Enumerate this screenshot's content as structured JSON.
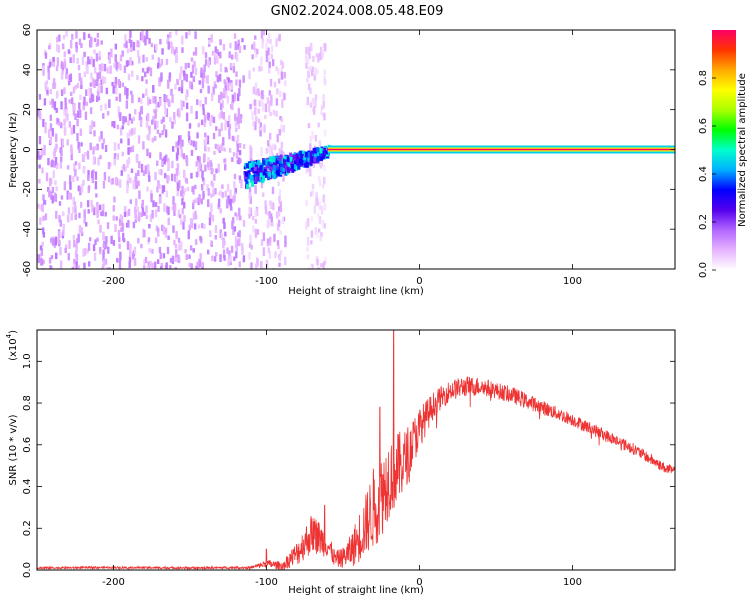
{
  "title": "GN02.2024.008.05.48.E09",
  "chart_data": [
    {
      "type": "heatmap",
      "panel": "spectrogram",
      "xlabel": "Height of straight line (km)",
      "ylabel": "Frequency (Hz)",
      "xlim": [
        -250,
        167
      ],
      "ylim": [
        -60,
        60
      ],
      "xticks": [
        -200,
        -100,
        0,
        100
      ],
      "yticks": [
        -60,
        -40,
        -20,
        0,
        20,
        40,
        60
      ],
      "colorbar": {
        "label": "Normalized spectral amplitude",
        "ticks": [
          "0.0",
          "0.2",
          "0.4",
          "0.6",
          "0.8"
        ],
        "range": [
          0,
          1
        ],
        "colors": [
          "#ffffff",
          "#e6b3ff",
          "#b266ff",
          "#5500ee",
          "#0000ff",
          "#00b0ff",
          "#00ffcc",
          "#00ff00",
          "#aaff00",
          "#ffff00",
          "#ffaa00",
          "#ff3300",
          "#ff0066"
        ]
      },
      "features": [
        {
          "description": "broadband noise",
          "x_range": [
            -250,
            -115
          ],
          "freq_range": [
            -60,
            60
          ],
          "amplitude_range": [
            0.05,
            0.15
          ]
        },
        {
          "description": "noise band",
          "x_range": [
            -112,
            -88
          ],
          "freq_range": [
            -60,
            60
          ],
          "amplitude_range": [
            0.03,
            0.12
          ]
        },
        {
          "description": "sparse noise",
          "x_range": [
            -75,
            -62
          ],
          "freq_range": [
            -60,
            55
          ],
          "amplitude_range": [
            0.02,
            0.08
          ]
        },
        {
          "description": "signal onset",
          "x_range": [
            -115,
            -60
          ],
          "freq_center": [
            -12,
            0
          ],
          "amplitude_range": [
            0.2,
            0.5
          ]
        },
        {
          "description": "narrow carrier line",
          "x_range": [
            -60,
            167
          ],
          "freq_center": 0,
          "amplitude_range": [
            0.7,
            1.0
          ]
        }
      ]
    },
    {
      "type": "line",
      "panel": "snr",
      "xlabel": "Height of straight line (km)",
      "ylabel": "SNR (10 * v/v)",
      "yunit_label": "(x10",
      "yunit_exp": "4",
      "xlim": [
        -250,
        167
      ],
      "ylim": [
        0,
        1.15
      ],
      "xticks": [
        -200,
        -100,
        0,
        100
      ],
      "yticks": [
        "0.0",
        "0.2",
        "0.4",
        "0.6",
        "0.8",
        "1.0"
      ],
      "series": [
        {
          "color": "#ee3333",
          "x": [
            -250,
            -200,
            -150,
            -110,
            -100,
            -90,
            -80,
            -70,
            -60,
            -55,
            -50,
            -45,
            -40,
            -35,
            -30,
            -25,
            -20,
            -15,
            -10,
            -5,
            0,
            10,
            20,
            30,
            40,
            50,
            60,
            80,
            100,
            120,
            140,
            160,
            167
          ],
          "y": [
            0.01,
            0.012,
            0.01,
            0.012,
            0.03,
            0.02,
            0.08,
            0.18,
            0.12,
            0.05,
            0.06,
            0.09,
            0.15,
            0.22,
            0.3,
            0.35,
            0.45,
            0.48,
            0.52,
            0.6,
            0.68,
            0.8,
            0.86,
            0.88,
            0.88,
            0.86,
            0.84,
            0.78,
            0.72,
            0.65,
            0.58,
            0.49,
            0.47
          ],
          "noise_amplitude": [
            0.005,
            0.005,
            0.005,
            0.006,
            0.02,
            0.02,
            0.06,
            0.1,
            0.06,
            0.04,
            0.05,
            0.08,
            0.12,
            0.15,
            0.2,
            0.2,
            0.2,
            0.18,
            0.15,
            0.12,
            0.1,
            0.06,
            0.05,
            0.05,
            0.045,
            0.04,
            0.04,
            0.035,
            0.03,
            0.03,
            0.028,
            0.025,
            0.025
          ],
          "peaks": [
            {
              "x": -100,
              "y": 0.1
            },
            {
              "x": -62,
              "y": 0.31
            },
            {
              "x": -17,
              "y": 1.15
            },
            {
              "x": -26,
              "y": 0.78
            }
          ]
        }
      ]
    }
  ]
}
